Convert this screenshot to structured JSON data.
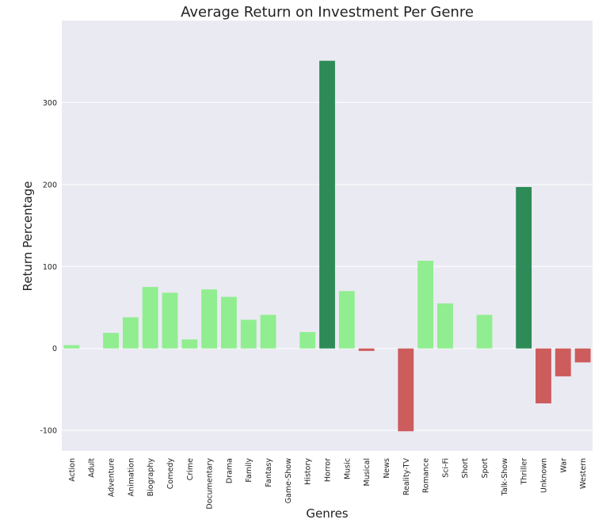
{
  "chart_data": {
    "type": "bar",
    "title": "Average Return on Investment Per Genre",
    "xlabel": "Genres",
    "ylabel": "Return Percentage",
    "ylim": [
      -125,
      400
    ],
    "yticks": [
      -100,
      0,
      100,
      200,
      300
    ],
    "grid": true,
    "legend": "none",
    "categories": [
      "Action",
      "Adult",
      "Adventure",
      "Animation",
      "Biography",
      "Comedy",
      "Crime",
      "Documentary",
      "Drama",
      "Family",
      "Fantasy",
      "Game-Show",
      "History",
      "Horror",
      "Music",
      "Musical",
      "News",
      "Reality-TV",
      "Romance",
      "Sci-Fi",
      "Short",
      "Sport",
      "Talk-Show",
      "Thriller",
      "Unknown",
      "War",
      "Western"
    ],
    "values": [
      4,
      0,
      19,
      38,
      75,
      68,
      11,
      72,
      63,
      35,
      41,
      0,
      20,
      351,
      70,
      -3,
      0,
      -101,
      107,
      55,
      0,
      41,
      0,
      197,
      -67,
      -34,
      -17
    ],
    "colors": {
      "background": "#eaeaf2",
      "grid": "#ffffff",
      "high": "#2e8b57",
      "positive": "#90ee90",
      "negative": "#cd5c5c"
    }
  }
}
